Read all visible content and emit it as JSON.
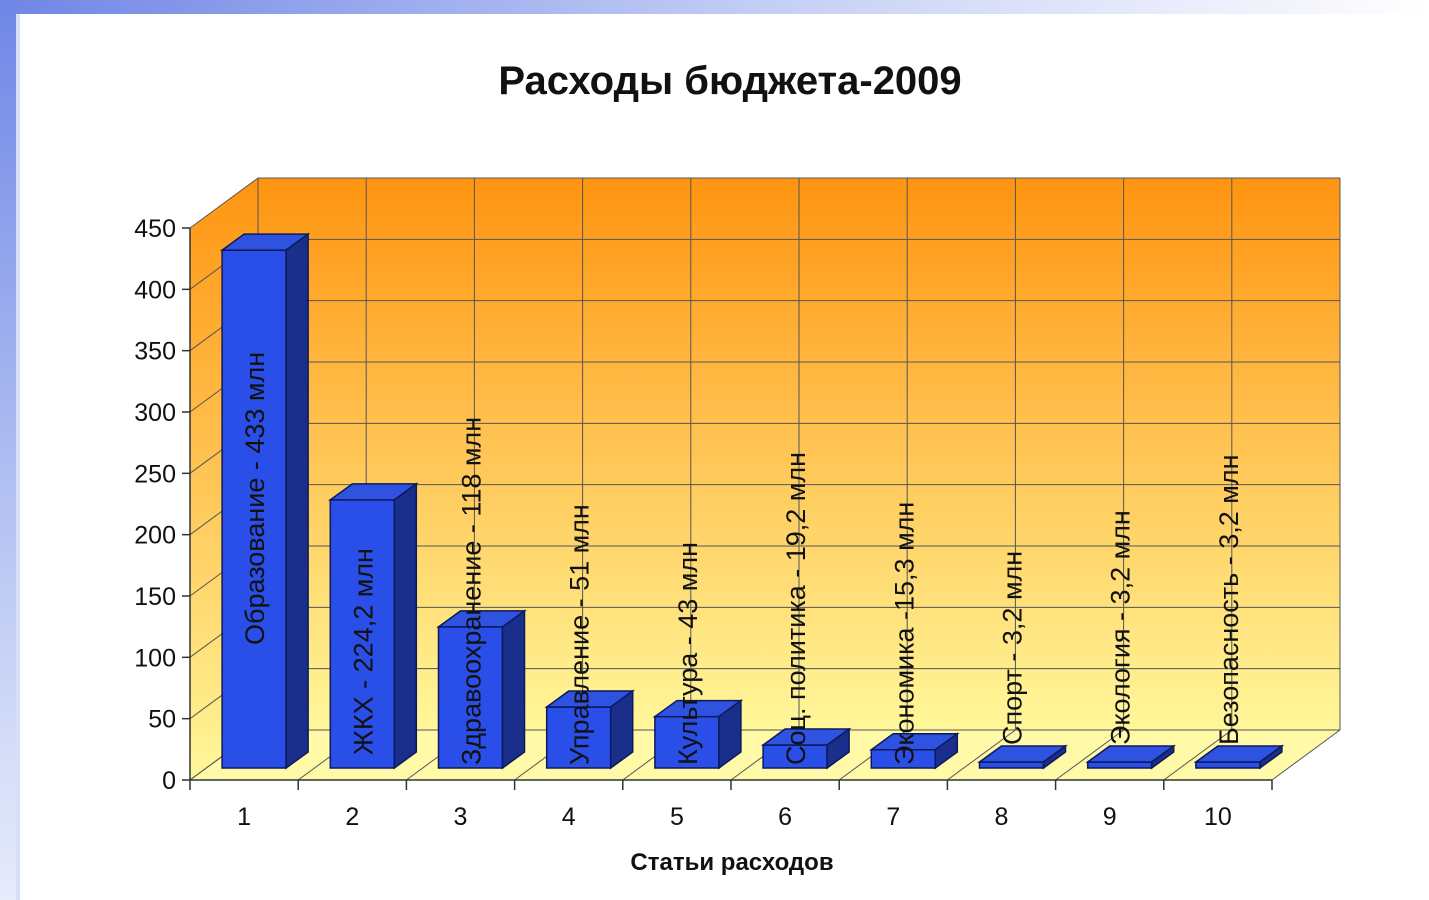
{
  "chart_data": {
    "type": "bar",
    "title": "Расходы бюджета-2009",
    "xlabel": "Статьи расходов",
    "ylabel": "",
    "ylim": [
      0,
      450
    ],
    "yticks": [
      0,
      50,
      100,
      150,
      200,
      250,
      300,
      350,
      400,
      450
    ],
    "categories": [
      "1",
      "2",
      "3",
      "4",
      "5",
      "6",
      "7",
      "8",
      "9",
      "10"
    ],
    "values": [
      433,
      224.2,
      118,
      51,
      43,
      19.2,
      15.3,
      3.2,
      3.2,
      3.2
    ],
    "data_labels": [
      "Образование - 433 млн",
      "ЖКХ - 224,2 млн",
      "Здравоохранение - 118 млн",
      "Управление - 51 млн",
      "Культура - 43 млн",
      "Соц. политика - 19,2 млн",
      "Экономика -15,3 млн",
      "Спорт - 3,2 млн",
      "Экология - 3,2 млн",
      "Безопасность - 3,2 млн"
    ],
    "grid": true,
    "legend": "none",
    "style": "3d",
    "colors": {
      "bar_front": "#2a4ee8",
      "bar_top": "#2f53e0",
      "bar_side": "#1a2f8c",
      "wall_top": "#ff9410",
      "wall_bottom": "#fff79a",
      "grid": "#555555"
    }
  }
}
